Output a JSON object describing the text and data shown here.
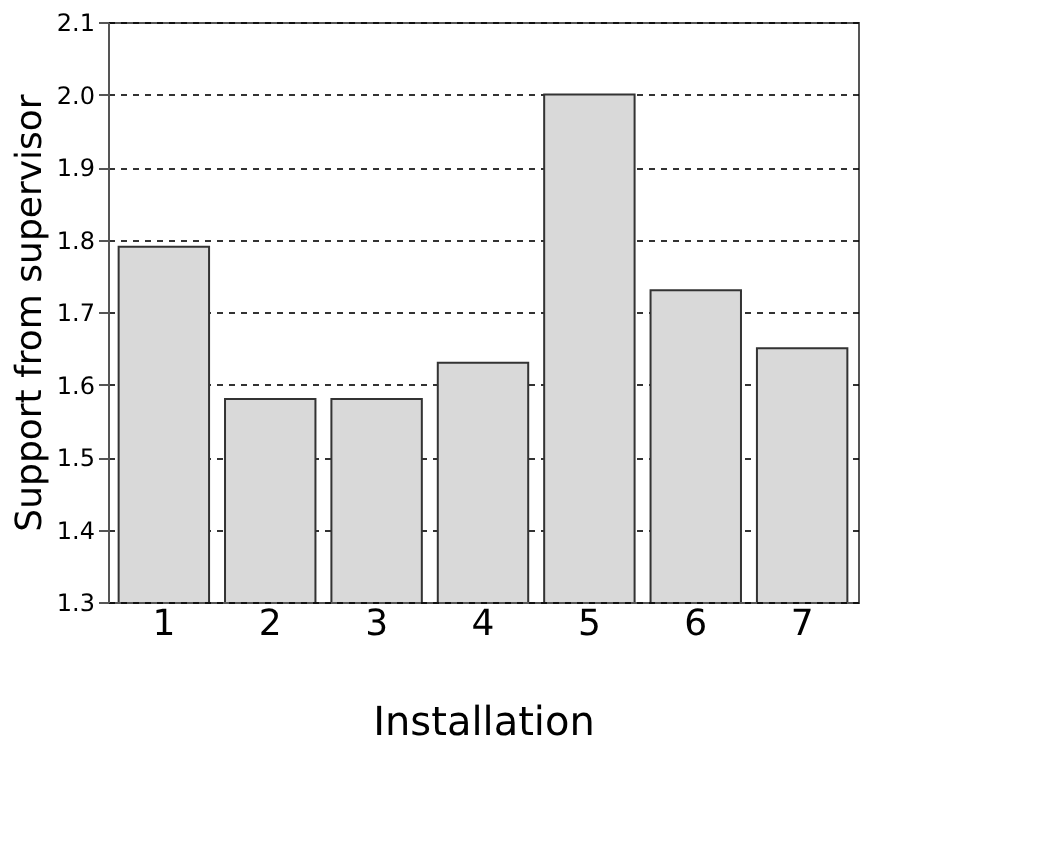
{
  "chart_data": {
    "type": "bar",
    "xlabel": "Installation",
    "ylabel": "Support from supervisor",
    "categories": [
      "1",
      "2",
      "3",
      "4",
      "5",
      "6",
      "7"
    ],
    "values": [
      1.79,
      1.58,
      1.58,
      1.63,
      2.0,
      1.73,
      1.65
    ],
    "color": "#d9d9d9",
    "ylim": [
      1.3,
      2.1
    ],
    "yticks": [
      1.3,
      1.4,
      1.5,
      1.6,
      1.7,
      1.8,
      1.9,
      {
        "value": 2.0,
        "label": "2.0"
      },
      2.1
    ],
    "grid": "y"
  }
}
